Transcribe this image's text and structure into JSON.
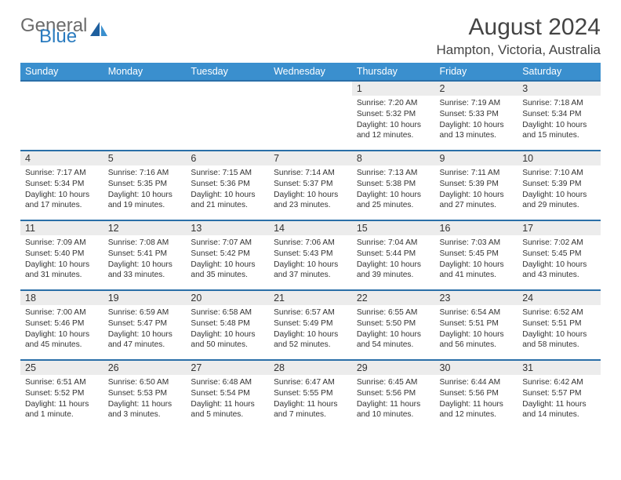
{
  "brand": {
    "word1": "General",
    "word2": "Blue"
  },
  "title": "August 2024",
  "location": "Hampton, Victoria, Australia",
  "colors": {
    "header_bg": "#3a8fce",
    "header_text": "#ffffff",
    "row_divider": "#2a6fa8",
    "daynum_bg": "#ececec",
    "text": "#333333",
    "logo_gray": "#6b6b6b",
    "logo_blue": "#2a7bbf",
    "page_bg": "#ffffff"
  },
  "typography": {
    "title_fontsize": 30,
    "location_fontsize": 17,
    "weekday_fontsize": 12.5,
    "daynum_fontsize": 12.5,
    "detail_fontsize": 10.2
  },
  "weekdays": [
    "Sunday",
    "Monday",
    "Tuesday",
    "Wednesday",
    "Thursday",
    "Friday",
    "Saturday"
  ],
  "weeks": [
    [
      null,
      null,
      null,
      null,
      {
        "n": "1",
        "sr": "Sunrise: 7:20 AM",
        "ss": "Sunset: 5:32 PM",
        "dl1": "Daylight: 10 hours",
        "dl2": "and 12 minutes."
      },
      {
        "n": "2",
        "sr": "Sunrise: 7:19 AM",
        "ss": "Sunset: 5:33 PM",
        "dl1": "Daylight: 10 hours",
        "dl2": "and 13 minutes."
      },
      {
        "n": "3",
        "sr": "Sunrise: 7:18 AM",
        "ss": "Sunset: 5:34 PM",
        "dl1": "Daylight: 10 hours",
        "dl2": "and 15 minutes."
      }
    ],
    [
      {
        "n": "4",
        "sr": "Sunrise: 7:17 AM",
        "ss": "Sunset: 5:34 PM",
        "dl1": "Daylight: 10 hours",
        "dl2": "and 17 minutes."
      },
      {
        "n": "5",
        "sr": "Sunrise: 7:16 AM",
        "ss": "Sunset: 5:35 PM",
        "dl1": "Daylight: 10 hours",
        "dl2": "and 19 minutes."
      },
      {
        "n": "6",
        "sr": "Sunrise: 7:15 AM",
        "ss": "Sunset: 5:36 PM",
        "dl1": "Daylight: 10 hours",
        "dl2": "and 21 minutes."
      },
      {
        "n": "7",
        "sr": "Sunrise: 7:14 AM",
        "ss": "Sunset: 5:37 PM",
        "dl1": "Daylight: 10 hours",
        "dl2": "and 23 minutes."
      },
      {
        "n": "8",
        "sr": "Sunrise: 7:13 AM",
        "ss": "Sunset: 5:38 PM",
        "dl1": "Daylight: 10 hours",
        "dl2": "and 25 minutes."
      },
      {
        "n": "9",
        "sr": "Sunrise: 7:11 AM",
        "ss": "Sunset: 5:39 PM",
        "dl1": "Daylight: 10 hours",
        "dl2": "and 27 minutes."
      },
      {
        "n": "10",
        "sr": "Sunrise: 7:10 AM",
        "ss": "Sunset: 5:39 PM",
        "dl1": "Daylight: 10 hours",
        "dl2": "and 29 minutes."
      }
    ],
    [
      {
        "n": "11",
        "sr": "Sunrise: 7:09 AM",
        "ss": "Sunset: 5:40 PM",
        "dl1": "Daylight: 10 hours",
        "dl2": "and 31 minutes."
      },
      {
        "n": "12",
        "sr": "Sunrise: 7:08 AM",
        "ss": "Sunset: 5:41 PM",
        "dl1": "Daylight: 10 hours",
        "dl2": "and 33 minutes."
      },
      {
        "n": "13",
        "sr": "Sunrise: 7:07 AM",
        "ss": "Sunset: 5:42 PM",
        "dl1": "Daylight: 10 hours",
        "dl2": "and 35 minutes."
      },
      {
        "n": "14",
        "sr": "Sunrise: 7:06 AM",
        "ss": "Sunset: 5:43 PM",
        "dl1": "Daylight: 10 hours",
        "dl2": "and 37 minutes."
      },
      {
        "n": "15",
        "sr": "Sunrise: 7:04 AM",
        "ss": "Sunset: 5:44 PM",
        "dl1": "Daylight: 10 hours",
        "dl2": "and 39 minutes."
      },
      {
        "n": "16",
        "sr": "Sunrise: 7:03 AM",
        "ss": "Sunset: 5:45 PM",
        "dl1": "Daylight: 10 hours",
        "dl2": "and 41 minutes."
      },
      {
        "n": "17",
        "sr": "Sunrise: 7:02 AM",
        "ss": "Sunset: 5:45 PM",
        "dl1": "Daylight: 10 hours",
        "dl2": "and 43 minutes."
      }
    ],
    [
      {
        "n": "18",
        "sr": "Sunrise: 7:00 AM",
        "ss": "Sunset: 5:46 PM",
        "dl1": "Daylight: 10 hours",
        "dl2": "and 45 minutes."
      },
      {
        "n": "19",
        "sr": "Sunrise: 6:59 AM",
        "ss": "Sunset: 5:47 PM",
        "dl1": "Daylight: 10 hours",
        "dl2": "and 47 minutes."
      },
      {
        "n": "20",
        "sr": "Sunrise: 6:58 AM",
        "ss": "Sunset: 5:48 PM",
        "dl1": "Daylight: 10 hours",
        "dl2": "and 50 minutes."
      },
      {
        "n": "21",
        "sr": "Sunrise: 6:57 AM",
        "ss": "Sunset: 5:49 PM",
        "dl1": "Daylight: 10 hours",
        "dl2": "and 52 minutes."
      },
      {
        "n": "22",
        "sr": "Sunrise: 6:55 AM",
        "ss": "Sunset: 5:50 PM",
        "dl1": "Daylight: 10 hours",
        "dl2": "and 54 minutes."
      },
      {
        "n": "23",
        "sr": "Sunrise: 6:54 AM",
        "ss": "Sunset: 5:51 PM",
        "dl1": "Daylight: 10 hours",
        "dl2": "and 56 minutes."
      },
      {
        "n": "24",
        "sr": "Sunrise: 6:52 AM",
        "ss": "Sunset: 5:51 PM",
        "dl1": "Daylight: 10 hours",
        "dl2": "and 58 minutes."
      }
    ],
    [
      {
        "n": "25",
        "sr": "Sunrise: 6:51 AM",
        "ss": "Sunset: 5:52 PM",
        "dl1": "Daylight: 11 hours",
        "dl2": "and 1 minute."
      },
      {
        "n": "26",
        "sr": "Sunrise: 6:50 AM",
        "ss": "Sunset: 5:53 PM",
        "dl1": "Daylight: 11 hours",
        "dl2": "and 3 minutes."
      },
      {
        "n": "27",
        "sr": "Sunrise: 6:48 AM",
        "ss": "Sunset: 5:54 PM",
        "dl1": "Daylight: 11 hours",
        "dl2": "and 5 minutes."
      },
      {
        "n": "28",
        "sr": "Sunrise: 6:47 AM",
        "ss": "Sunset: 5:55 PM",
        "dl1": "Daylight: 11 hours",
        "dl2": "and 7 minutes."
      },
      {
        "n": "29",
        "sr": "Sunrise: 6:45 AM",
        "ss": "Sunset: 5:56 PM",
        "dl1": "Daylight: 11 hours",
        "dl2": "and 10 minutes."
      },
      {
        "n": "30",
        "sr": "Sunrise: 6:44 AM",
        "ss": "Sunset: 5:56 PM",
        "dl1": "Daylight: 11 hours",
        "dl2": "and 12 minutes."
      },
      {
        "n": "31",
        "sr": "Sunrise: 6:42 AM",
        "ss": "Sunset: 5:57 PM",
        "dl1": "Daylight: 11 hours",
        "dl2": "and 14 minutes."
      }
    ]
  ]
}
